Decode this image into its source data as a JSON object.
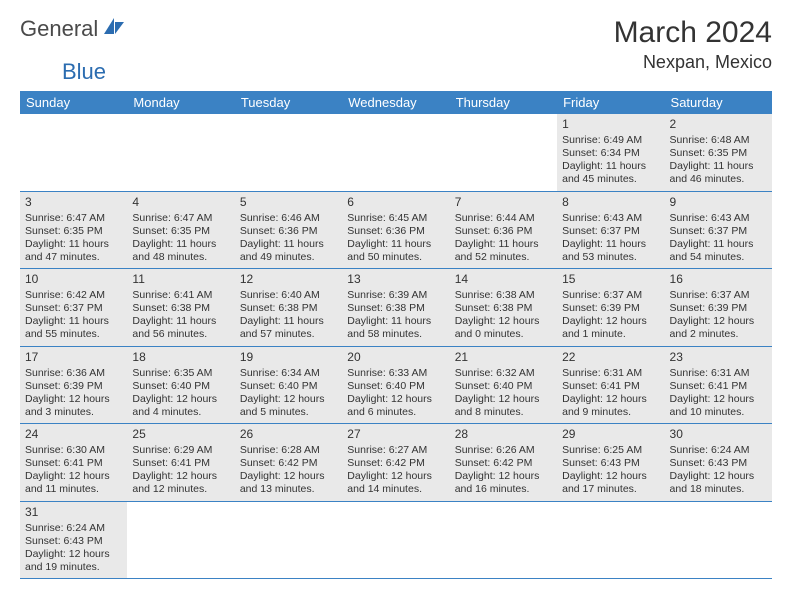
{
  "logo": {
    "general": "General",
    "blue": "Blue"
  },
  "header": {
    "title": "March 2024",
    "location": "Nexpan, Mexico"
  },
  "colors": {
    "header_bg": "#3b82c4",
    "header_fg": "#ffffff",
    "row_border": "#3b82c4",
    "grey_cell": "#e9e9e9",
    "text": "#333333",
    "logo_blue": "#2b6cb0"
  },
  "daynames": [
    "Sunday",
    "Monday",
    "Tuesday",
    "Wednesday",
    "Thursday",
    "Friday",
    "Saturday"
  ],
  "weeks": [
    [
      null,
      null,
      null,
      null,
      null,
      {
        "n": "1",
        "sr": "6:49 AM",
        "ss": "6:34 PM",
        "dl": "11 hours and 45 minutes."
      },
      {
        "n": "2",
        "sr": "6:48 AM",
        "ss": "6:35 PM",
        "dl": "11 hours and 46 minutes."
      }
    ],
    [
      {
        "n": "3",
        "sr": "6:47 AM",
        "ss": "6:35 PM",
        "dl": "11 hours and 47 minutes."
      },
      {
        "n": "4",
        "sr": "6:47 AM",
        "ss": "6:35 PM",
        "dl": "11 hours and 48 minutes."
      },
      {
        "n": "5",
        "sr": "6:46 AM",
        "ss": "6:36 PM",
        "dl": "11 hours and 49 minutes."
      },
      {
        "n": "6",
        "sr": "6:45 AM",
        "ss": "6:36 PM",
        "dl": "11 hours and 50 minutes."
      },
      {
        "n": "7",
        "sr": "6:44 AM",
        "ss": "6:36 PM",
        "dl": "11 hours and 52 minutes."
      },
      {
        "n": "8",
        "sr": "6:43 AM",
        "ss": "6:37 PM",
        "dl": "11 hours and 53 minutes."
      },
      {
        "n": "9",
        "sr": "6:43 AM",
        "ss": "6:37 PM",
        "dl": "11 hours and 54 minutes."
      }
    ],
    [
      {
        "n": "10",
        "sr": "6:42 AM",
        "ss": "6:37 PM",
        "dl": "11 hours and 55 minutes."
      },
      {
        "n": "11",
        "sr": "6:41 AM",
        "ss": "6:38 PM",
        "dl": "11 hours and 56 minutes."
      },
      {
        "n": "12",
        "sr": "6:40 AM",
        "ss": "6:38 PM",
        "dl": "11 hours and 57 minutes."
      },
      {
        "n": "13",
        "sr": "6:39 AM",
        "ss": "6:38 PM",
        "dl": "11 hours and 58 minutes."
      },
      {
        "n": "14",
        "sr": "6:38 AM",
        "ss": "6:38 PM",
        "dl": "12 hours and 0 minutes."
      },
      {
        "n": "15",
        "sr": "6:37 AM",
        "ss": "6:39 PM",
        "dl": "12 hours and 1 minute."
      },
      {
        "n": "16",
        "sr": "6:37 AM",
        "ss": "6:39 PM",
        "dl": "12 hours and 2 minutes."
      }
    ],
    [
      {
        "n": "17",
        "sr": "6:36 AM",
        "ss": "6:39 PM",
        "dl": "12 hours and 3 minutes."
      },
      {
        "n": "18",
        "sr": "6:35 AM",
        "ss": "6:40 PM",
        "dl": "12 hours and 4 minutes."
      },
      {
        "n": "19",
        "sr": "6:34 AM",
        "ss": "6:40 PM",
        "dl": "12 hours and 5 minutes."
      },
      {
        "n": "20",
        "sr": "6:33 AM",
        "ss": "6:40 PM",
        "dl": "12 hours and 6 minutes."
      },
      {
        "n": "21",
        "sr": "6:32 AM",
        "ss": "6:40 PM",
        "dl": "12 hours and 8 minutes."
      },
      {
        "n": "22",
        "sr": "6:31 AM",
        "ss": "6:41 PM",
        "dl": "12 hours and 9 minutes."
      },
      {
        "n": "23",
        "sr": "6:31 AM",
        "ss": "6:41 PM",
        "dl": "12 hours and 10 minutes."
      }
    ],
    [
      {
        "n": "24",
        "sr": "6:30 AM",
        "ss": "6:41 PM",
        "dl": "12 hours and 11 minutes."
      },
      {
        "n": "25",
        "sr": "6:29 AM",
        "ss": "6:41 PM",
        "dl": "12 hours and 12 minutes."
      },
      {
        "n": "26",
        "sr": "6:28 AM",
        "ss": "6:42 PM",
        "dl": "12 hours and 13 minutes."
      },
      {
        "n": "27",
        "sr": "6:27 AM",
        "ss": "6:42 PM",
        "dl": "12 hours and 14 minutes."
      },
      {
        "n": "28",
        "sr": "6:26 AM",
        "ss": "6:42 PM",
        "dl": "12 hours and 16 minutes."
      },
      {
        "n": "29",
        "sr": "6:25 AM",
        "ss": "6:43 PM",
        "dl": "12 hours and 17 minutes."
      },
      {
        "n": "30",
        "sr": "6:24 AM",
        "ss": "6:43 PM",
        "dl": "12 hours and 18 minutes."
      }
    ],
    [
      {
        "n": "31",
        "sr": "6:24 AM",
        "ss": "6:43 PM",
        "dl": "12 hours and 19 minutes."
      },
      null,
      null,
      null,
      null,
      null,
      null
    ]
  ],
  "labels": {
    "sunrise": "Sunrise:",
    "sunset": "Sunset:",
    "daylight": "Daylight:"
  }
}
